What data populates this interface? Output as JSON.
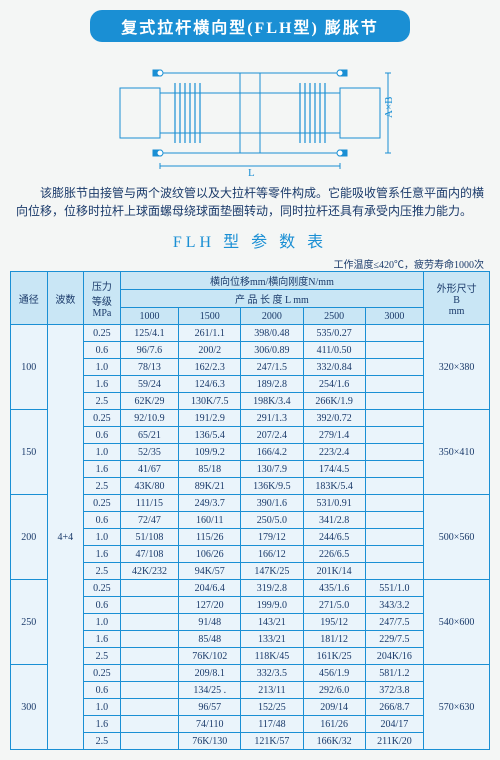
{
  "title": "复式拉杆横向型(FLH型) 膨胀节",
  "diagram_labels": {
    "L": "L",
    "AxB": "A×B"
  },
  "description": "该膨胀节由接管与两个波纹管以及大拉杆等零件构成。它能吸收管系任意平面内的横向位移，位移时拉杆上球面螺母绕球面垫圈转动，同时拉杆还具有承受内压推力能力。",
  "subtitle": "FLH 型 参 数 表",
  "note": "工作温度≤420℃，疲劳寿命1000次",
  "headers": {
    "diameter": "通径",
    "waves": "波数",
    "pressure": "压力\n等级\nMPa",
    "disp": "横向位移mm/横向刚度N/mm",
    "length": "产 品 长 度 L mm",
    "size": "外形尺寸\nB\nmm",
    "cols": [
      "1000",
      "1500",
      "2000",
      "2500",
      "3000"
    ]
  },
  "groups": [
    {
      "dia": "100",
      "waves": "",
      "size": "320×380",
      "rows": [
        {
          "p": "0.25",
          "v": [
            "125/4.1",
            "261/1.1",
            "398/0.48",
            "535/0.27",
            ""
          ]
        },
        {
          "p": "0.6",
          "v": [
            "96/7.6",
            "200/2",
            "306/0.89",
            "411/0.50",
            ""
          ]
        },
        {
          "p": "1.0",
          "v": [
            "78/13",
            "162/2.3",
            "247/1.5",
            "332/0.84",
            ""
          ]
        },
        {
          "p": "1.6",
          "v": [
            "59/24",
            "124/6.3",
            "189/2.8",
            "254/1.6",
            ""
          ]
        },
        {
          "p": "2.5",
          "v": [
            "62K/29",
            "130K/7.5",
            "198K/3.4",
            "266K/1.9",
            ""
          ]
        }
      ]
    },
    {
      "dia": "150",
      "waves": "",
      "size": "350×410",
      "rows": [
        {
          "p": "0.25",
          "v": [
            "92/10.9",
            "191/2.9",
            "291/1.3",
            "392/0.72",
            ""
          ]
        },
        {
          "p": "0.6",
          "v": [
            "65/21",
            "136/5.4",
            "207/2.4",
            "279/1.4",
            ""
          ]
        },
        {
          "p": "1.0",
          "v": [
            "52/35",
            "109/9.2",
            "166/4.2",
            "223/2.4",
            ""
          ]
        },
        {
          "p": "1.6",
          "v": [
            "41/67",
            "85/18",
            "130/7.9",
            "174/4.5",
            ""
          ]
        },
        {
          "p": "2.5",
          "v": [
            "43K/80",
            "89K/21",
            "136K/9.5",
            "183K/5.4",
            ""
          ]
        }
      ]
    },
    {
      "dia": "200",
      "waves": "4+4",
      "size": "500×560",
      "rows": [
        {
          "p": "0.25",
          "v": [
            "111/15",
            "249/3.7",
            "390/1.6",
            "531/0.91",
            ""
          ]
        },
        {
          "p": "0.6",
          "v": [
            "72/47",
            "160/11",
            "250/5.0",
            "341/2.8",
            ""
          ]
        },
        {
          "p": "1.0",
          "v": [
            "51/108",
            "115/26",
            "179/12",
            "244/6.5",
            ""
          ]
        },
        {
          "p": "1.6",
          "v": [
            "47/108",
            "106/26",
            "166/12",
            "226/6.5",
            ""
          ]
        },
        {
          "p": "2.5",
          "v": [
            "42K/232",
            "94K/57",
            "147K/25",
            "201K/14",
            ""
          ]
        }
      ]
    },
    {
      "dia": "250",
      "waves": "",
      "size": "540×600",
      "rows": [
        {
          "p": "0.25",
          "v": [
            "",
            "204/6.4",
            "319/2.8",
            "435/1.6",
            "551/1.0"
          ]
        },
        {
          "p": "0.6",
          "v": [
            "",
            "127/20",
            "199/9.0",
            "271/5.0",
            "343/3.2"
          ]
        },
        {
          "p": "1.0",
          "v": [
            "",
            "91/48",
            "143/21",
            "195/12",
            "247/7.5"
          ]
        },
        {
          "p": "1.6",
          "v": [
            "",
            "85/48",
            "133/21",
            "181/12",
            "229/7.5"
          ]
        },
        {
          "p": "2.5",
          "v": [
            "",
            "76K/102",
            "118K/45",
            "161K/25",
            "204K/16"
          ]
        }
      ]
    },
    {
      "dia": "300",
      "waves": "",
      "size": "570×630",
      "rows": [
        {
          "p": "0.25",
          "v": [
            "",
            "209/8.1",
            "332/3.5",
            "456/1.9",
            "581/1.2"
          ]
        },
        {
          "p": "0.6",
          "v": [
            "",
            "134/25 .",
            "213/11",
            "292/6.0",
            "372/3.8"
          ]
        },
        {
          "p": "1.0",
          "v": [
            "",
            "96/57",
            "152/25",
            "209/14",
            "266/8.7"
          ]
        },
        {
          "p": "1.6",
          "v": [
            "",
            "74/110",
            "117/48",
            "161/26",
            "204/17"
          ]
        },
        {
          "p": "2.5",
          "v": [
            "",
            "76K/130",
            "121K/57",
            "166K/32",
            "211K/20"
          ]
        }
      ]
    }
  ]
}
